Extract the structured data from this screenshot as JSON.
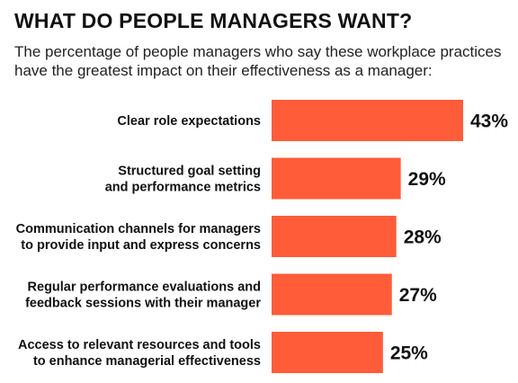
{
  "chart_data": {
    "type": "bar",
    "orientation": "horizontal",
    "title": "WHAT DO PEOPLE MANAGERS WANT?",
    "subtitle": "The percentage of people managers who say these workplace practices have the greatest impact on their effectiveness as a manager:",
    "categories": [
      [
        "Clear role expectations"
      ],
      [
        "Structured goal setting",
        "and performance metrics"
      ],
      [
        "Communication channels for managers",
        "to provide input and express concerns"
      ],
      [
        "Regular performance evaluations and",
        "feedback sessions with their manager"
      ],
      [
        "Access to relevant resources and tools",
        "to enhance managerial effectiveness"
      ]
    ],
    "values": [
      43,
      29,
      28,
      27,
      25
    ],
    "value_labels": [
      "43%",
      "29%",
      "28%",
      "27%",
      "25%"
    ],
    "xlim": [
      0,
      43
    ],
    "grid": false,
    "legend": "none",
    "bar_color": "#ff5c3a"
  }
}
